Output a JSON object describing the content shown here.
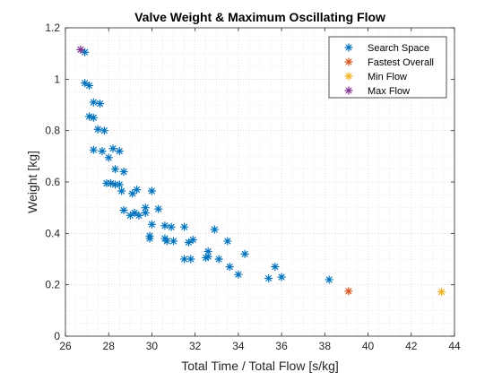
{
  "chart_data": {
    "type": "scatter",
    "title": "Valve Weight & Maximum Oscillating Flow",
    "xlabel": "Total Time / Total Flow [s/kg]",
    "ylabel": "Weight [kg]",
    "xlim": [
      26,
      44
    ],
    "ylim": [
      0,
      1.2
    ],
    "xticks": [
      26,
      28,
      30,
      32,
      34,
      36,
      38,
      40,
      42,
      44
    ],
    "xtick_labels": [
      "26",
      "28",
      "30",
      "32",
      "34",
      "36",
      "38",
      "40",
      "42",
      "44"
    ],
    "yticks": [
      0,
      0.2,
      0.4,
      0.6,
      0.8,
      1.0,
      1.2
    ],
    "ytick_labels": [
      "0",
      "0.2",
      "0.4",
      "0.6",
      "0.8",
      "1",
      "1.2"
    ],
    "grid": "major-and-minor",
    "legend_position": "top-right",
    "marker": "asterisk",
    "series": [
      {
        "name": "Search Space",
        "color": "#0072BD",
        "points": [
          [
            26.9,
            1.105
          ],
          [
            26.9,
            0.985
          ],
          [
            27.1,
            0.975
          ],
          [
            27.3,
            0.91
          ],
          [
            27.6,
            0.905
          ],
          [
            27.1,
            0.855
          ],
          [
            27.3,
            0.85
          ],
          [
            27.5,
            0.805
          ],
          [
            27.8,
            0.8
          ],
          [
            27.3,
            0.725
          ],
          [
            27.7,
            0.72
          ],
          [
            28.2,
            0.73
          ],
          [
            28.5,
            0.72
          ],
          [
            28.0,
            0.695
          ],
          [
            28.3,
            0.65
          ],
          [
            28.7,
            0.64
          ],
          [
            27.9,
            0.595
          ],
          [
            28.1,
            0.595
          ],
          [
            28.3,
            0.59
          ],
          [
            28.5,
            0.59
          ],
          [
            28.6,
            0.565
          ],
          [
            29.1,
            0.555
          ],
          [
            29.3,
            0.57
          ],
          [
            30.0,
            0.565
          ],
          [
            28.7,
            0.49
          ],
          [
            29.0,
            0.47
          ],
          [
            29.2,
            0.48
          ],
          [
            29.4,
            0.47
          ],
          [
            29.7,
            0.5
          ],
          [
            29.7,
            0.48
          ],
          [
            30.3,
            0.495
          ],
          [
            30.0,
            0.435
          ],
          [
            30.6,
            0.43
          ],
          [
            30.9,
            0.425
          ],
          [
            31.5,
            0.425
          ],
          [
            32.9,
            0.415
          ],
          [
            29.9,
            0.39
          ],
          [
            29.9,
            0.38
          ],
          [
            30.6,
            0.38
          ],
          [
            30.7,
            0.37
          ],
          [
            31.0,
            0.37
          ],
          [
            31.7,
            0.365
          ],
          [
            31.9,
            0.375
          ],
          [
            32.6,
            0.33
          ],
          [
            33.5,
            0.37
          ],
          [
            31.5,
            0.3
          ],
          [
            31.8,
            0.3
          ],
          [
            32.5,
            0.305
          ],
          [
            32.6,
            0.31
          ],
          [
            33.1,
            0.3
          ],
          [
            33.6,
            0.27
          ],
          [
            34.3,
            0.32
          ],
          [
            34.0,
            0.24
          ],
          [
            35.4,
            0.225
          ],
          [
            35.7,
            0.27
          ],
          [
            36.0,
            0.23
          ],
          [
            38.2,
            0.22
          ]
        ]
      },
      {
        "name": "Fastest Overall",
        "color": "#D95319",
        "points": [
          [
            39.1,
            0.175
          ]
        ]
      },
      {
        "name": "Min Flow",
        "color": "#EDB120",
        "points": [
          [
            43.4,
            0.172
          ]
        ]
      },
      {
        "name": "Max Flow",
        "color": "#7E2F8E",
        "points": [
          [
            26.7,
            1.115
          ]
        ]
      }
    ]
  }
}
